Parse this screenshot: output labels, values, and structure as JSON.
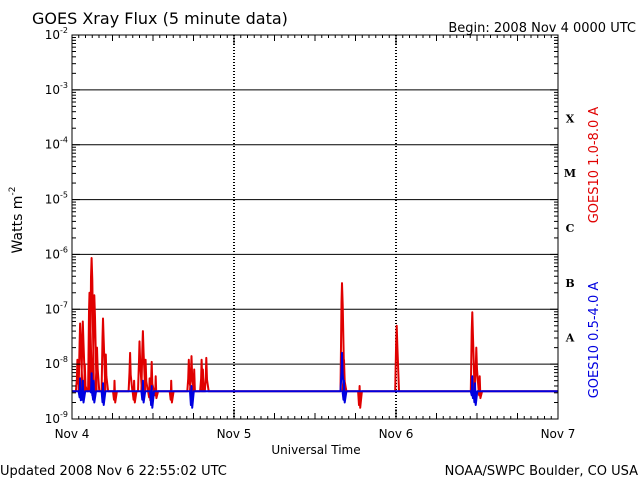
{
  "header": {
    "title": "GOES Xray Flux (5 minute data)",
    "begin": "Begin:  2008 Nov 4 0000 UTC"
  },
  "footer": {
    "updated": "Updated 2008 Nov  6 22:55:02 UTC",
    "source": "NOAA/SWPC Boulder, CO USA"
  },
  "colors": {
    "long_channel": "#e00000",
    "short_channel": "#0000e0",
    "axis": "#000000"
  },
  "chart_data": {
    "type": "line",
    "title": "GOES Xray Flux (5 minute data)",
    "xlabel": "Universal Time",
    "ylabel": "Watts m",
    "ylabel_superscript": "-2",
    "y_scale": "log",
    "ylim": [
      1e-09,
      0.01
    ],
    "xlim": [
      0,
      72
    ],
    "x_units": "hours since 2008 Nov 4 0000 UTC",
    "x_ticks": [
      {
        "x": 0,
        "label": "Nov 4"
      },
      {
        "x": 24,
        "label": "Nov 5"
      },
      {
        "x": 48,
        "label": "Nov 6"
      },
      {
        "x": 72,
        "label": "Nov 7"
      }
    ],
    "y_ticks": [
      {
        "exp": -9
      },
      {
        "exp": -8
      },
      {
        "exp": -7
      },
      {
        "exp": -6
      },
      {
        "exp": -5
      },
      {
        "exp": -4
      },
      {
        "exp": -3
      },
      {
        "exp": -2
      }
    ],
    "grid": "horizontal at each decade",
    "flare_classes": [
      {
        "label": "X",
        "exp": -4
      },
      {
        "label": "M",
        "exp": -5
      },
      {
        "label": "C",
        "exp": -6
      },
      {
        "label": "B",
        "exp": -7
      },
      {
        "label": "A",
        "exp": -8
      }
    ],
    "series": [
      {
        "name": "GOES10 1.0-8.0 A",
        "color": "#e00000",
        "baseline": 3.2e-09,
        "spikes": [
          [
            0.8,
            1.2e-08
          ],
          [
            1.2,
            5.5e-08
          ],
          [
            1.6,
            6e-08
          ],
          [
            1.9,
            1e-08
          ],
          [
            2.6,
            2e-07
          ],
          [
            2.9,
            8.6e-07
          ],
          [
            3.3,
            1.8e-07
          ],
          [
            3.7,
            2e-08
          ],
          [
            4.6,
            6.8e-08
          ],
          [
            5.0,
            1.5e-08
          ],
          [
            6.3,
            5e-09
          ],
          [
            8.6,
            1.6e-08
          ],
          [
            9.2,
            5e-09
          ],
          [
            10.0,
            2.6e-08
          ],
          [
            10.5,
            4e-08
          ],
          [
            10.9,
            1.2e-08
          ],
          [
            11.5,
            5.5e-09
          ],
          [
            11.8,
            1.1e-08
          ],
          [
            12.4,
            6e-09
          ],
          [
            14.7,
            5e-09
          ],
          [
            17.3,
            1.2e-08
          ],
          [
            17.7,
            1.4e-08
          ],
          [
            18.1,
            8e-09
          ],
          [
            19.2,
            1.2e-08
          ],
          [
            19.4,
            8e-09
          ],
          [
            19.9,
            1.3e-08
          ],
          [
            40.0,
            3e-07
          ],
          [
            40.3,
            1.2e-08
          ],
          [
            42.6,
            4e-09
          ],
          [
            48.1,
            5e-08
          ],
          [
            59.3,
            8.8e-08
          ],
          [
            59.9,
            2e-08
          ],
          [
            60.4,
            6e-09
          ]
        ]
      },
      {
        "name": "GOES10 0.5-4.0 A",
        "color": "#0000e0",
        "baseline": 3.2e-09,
        "spikes": [
          [
            1.2,
            5.5e-09
          ],
          [
            1.6,
            5e-09
          ],
          [
            2.9,
            6.8e-09
          ],
          [
            3.2,
            5e-09
          ],
          [
            4.6,
            4.5e-09
          ],
          [
            10.5,
            5e-09
          ],
          [
            11.8,
            4e-09
          ],
          [
            17.7,
            4e-09
          ],
          [
            40.0,
            1.6e-08
          ],
          [
            40.3,
            5e-09
          ],
          [
            59.3,
            6e-09
          ],
          [
            59.7,
            4.5e-09
          ]
        ]
      }
    ]
  }
}
